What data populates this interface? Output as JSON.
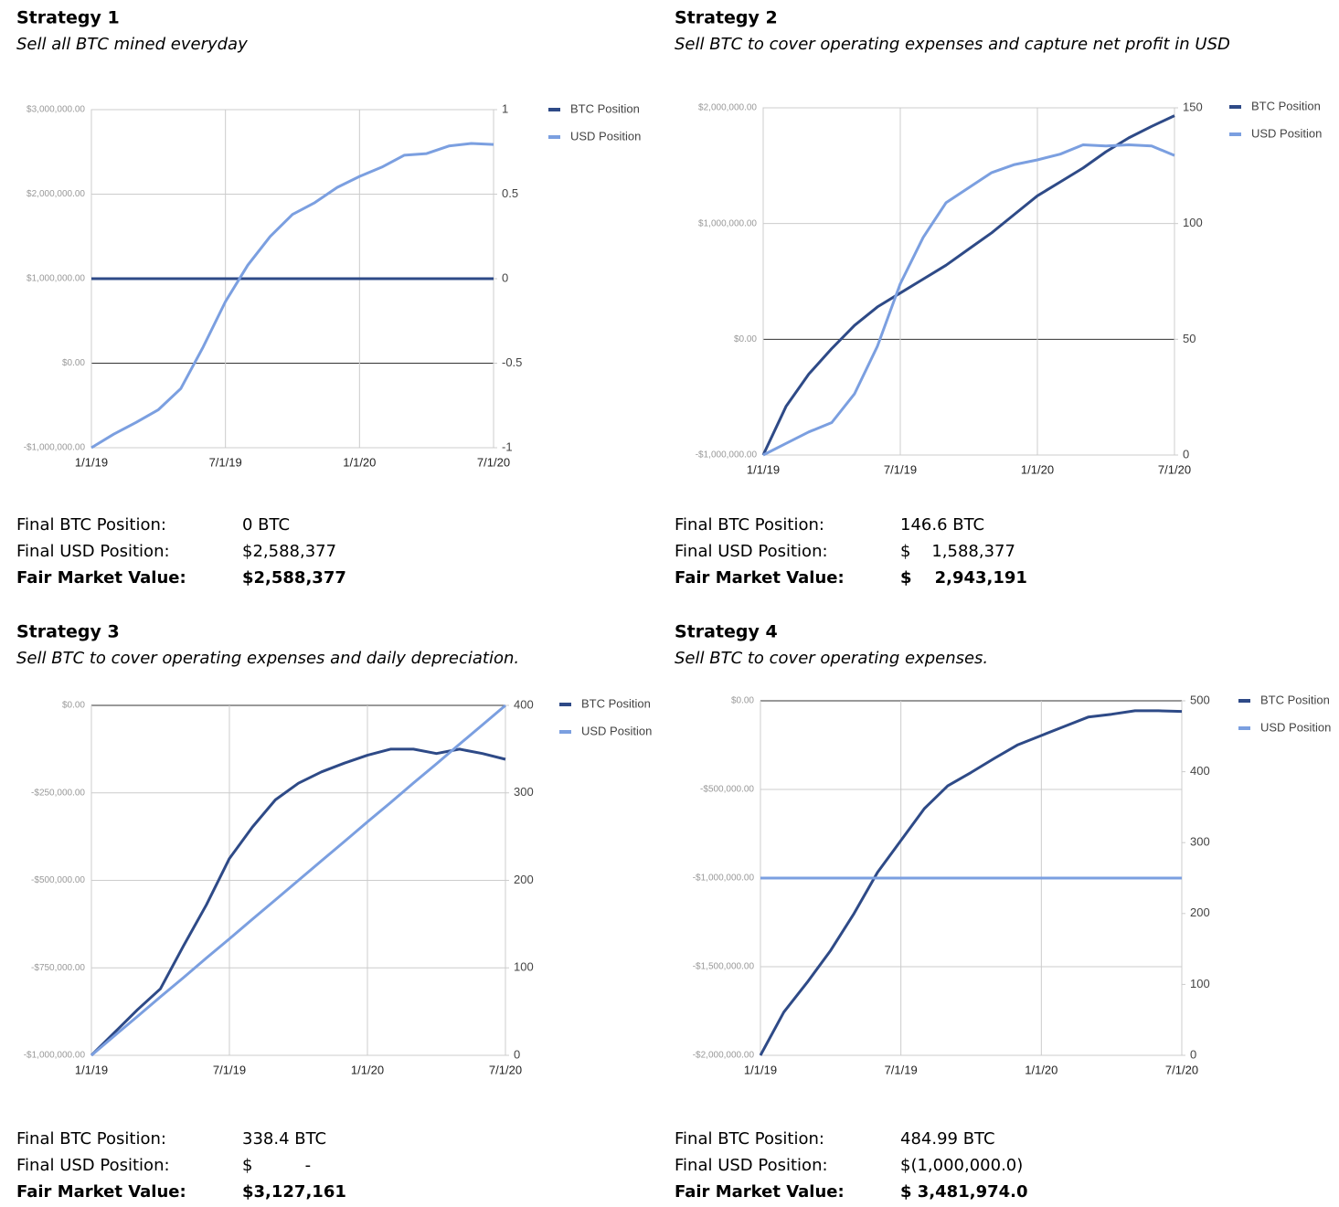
{
  "chart_data": [
    {
      "type": "line",
      "title": "Strategy 1",
      "subtitle": "Sell all BTC mined everyday",
      "x": [
        "1/1/19",
        "2/1/19",
        "3/1/19",
        "4/1/19",
        "5/1/19",
        "6/1/19",
        "7/1/19",
        "8/1/19",
        "9/1/19",
        "10/1/19",
        "11/1/19",
        "12/1/19",
        "1/1/20",
        "2/1/20",
        "3/1/20",
        "4/1/20",
        "5/1/20",
        "6/1/20",
        "7/1/20"
      ],
      "xticks": [
        "1/1/19",
        "7/1/19",
        "1/1/20",
        "7/1/20"
      ],
      "ylim": [
        -1000000,
        3000000
      ],
      "yticks": [
        {
          "value": -1000000,
          "label": "-$1,000,000.00"
        },
        {
          "value": 0,
          "label": "$0.00"
        },
        {
          "value": 1000000,
          "label": "$1,000,000.00"
        },
        {
          "value": 2000000,
          "label": "$2,000,000.00"
        },
        {
          "value": 3000000,
          "label": "$3,000,000.00"
        }
      ],
      "y2lim": [
        -1,
        1
      ],
      "y2ticks": [
        -1,
        -0.5,
        0,
        0.5,
        1
      ],
      "grid": true,
      "legend": "right",
      "series": [
        {
          "name": "BTC Position",
          "color": "#2e4a87",
          "axis": "y2",
          "values": [
            0,
            0,
            0,
            0,
            0,
            0,
            0,
            0,
            0,
            0,
            0,
            0,
            0,
            0,
            0,
            0,
            0,
            0,
            0
          ]
        },
        {
          "name": "USD Position",
          "color": "#7b9fe0",
          "axis": "y",
          "values": [
            -1000000,
            -840000,
            -700000,
            -550000,
            -300000,
            190000,
            730000,
            1160000,
            1500000,
            1760000,
            1900000,
            2080000,
            2210000,
            2320000,
            2460000,
            2480000,
            2570000,
            2600000,
            2588377
          ]
        }
      ]
    },
    {
      "type": "line",
      "title": "Strategy 2",
      "subtitle": "Sell BTC to cover operating expenses and capture net profit in USD",
      "x": [
        "1/1/19",
        "2/1/19",
        "3/1/19",
        "4/1/19",
        "5/1/19",
        "6/1/19",
        "7/1/19",
        "8/1/19",
        "9/1/19",
        "10/1/19",
        "11/1/19",
        "12/1/19",
        "1/1/20",
        "2/1/20",
        "3/1/20",
        "4/1/20",
        "5/1/20",
        "6/1/20",
        "7/1/20"
      ],
      "xticks": [
        "1/1/19",
        "7/1/19",
        "1/1/20",
        "7/1/20"
      ],
      "ylim": [
        -1000000,
        2000000
      ],
      "yticks": [
        {
          "value": -1000000,
          "label": "-$1,000,000.00"
        },
        {
          "value": 0,
          "label": "$0.00"
        },
        {
          "value": 1000000,
          "label": "$1,000,000.00"
        },
        {
          "value": 2000000,
          "label": "$2,000,000.00"
        }
      ],
      "y2lim": [
        0,
        150
      ],
      "y2ticks": [
        0,
        50,
        100,
        150
      ],
      "grid": true,
      "legend": "right",
      "series": [
        {
          "name": "BTC Position",
          "color": "#2e4a87",
          "axis": "y2",
          "values": [
            0,
            21,
            35,
            46,
            56,
            64,
            70,
            76,
            82,
            89,
            96,
            104,
            112,
            118,
            124,
            131,
            137,
            142,
            146.6
          ]
        },
        {
          "name": "USD Position",
          "color": "#7b9fe0",
          "axis": "y",
          "values": [
            -1000000,
            -900000,
            -800000,
            -720000,
            -470000,
            -60000,
            480000,
            880000,
            1180000,
            1310000,
            1440000,
            1510000,
            1550000,
            1600000,
            1680000,
            1670000,
            1680000,
            1670000,
            1588377
          ]
        }
      ]
    },
    {
      "type": "line",
      "title": "Strategy 3",
      "subtitle": "Sell BTC to cover operating expenses and daily depreciation.",
      "x": [
        "1/1/19",
        "2/1/19",
        "3/1/19",
        "4/1/19",
        "5/1/19",
        "6/1/19",
        "7/1/19",
        "8/1/19",
        "9/1/19",
        "10/1/19",
        "11/1/19",
        "12/1/19",
        "1/1/20",
        "2/1/20",
        "3/1/20",
        "4/1/20",
        "5/1/20",
        "6/1/20",
        "7/1/20"
      ],
      "xticks": [
        "1/1/19",
        "7/1/19",
        "1/1/20",
        "7/1/20"
      ],
      "ylim": [
        -1000000,
        0
      ],
      "yticks": [
        {
          "value": -1000000,
          "label": "-$1,000,000.00"
        },
        {
          "value": -750000,
          "label": "-$750,000.00"
        },
        {
          "value": -500000,
          "label": "-$500,000.00"
        },
        {
          "value": -250000,
          "label": "-$250,000.00"
        },
        {
          "value": 0,
          "label": "$0.00"
        }
      ],
      "y2lim": [
        0,
        400
      ],
      "y2ticks": [
        0,
        100,
        200,
        300,
        400
      ],
      "grid": true,
      "legend": "right",
      "series": [
        {
          "name": "BTC Position",
          "color": "#2e4a87",
          "axis": "y2",
          "values": [
            0,
            26,
            52,
            76,
            125,
            172,
            225,
            261,
            292,
            311,
            324,
            334,
            343,
            350,
            350,
            345,
            350,
            345,
            338.4
          ]
        },
        {
          "name": "USD Position",
          "color": "#7b9fe0",
          "axis": "y",
          "values": [
            -1000000,
            -944000,
            -889000,
            -833000,
            -778000,
            -722000,
            -667000,
            -611000,
            -556000,
            -500000,
            -444000,
            -389000,
            -333000,
            -278000,
            -222000,
            -167000,
            -111000,
            -56000,
            0
          ]
        }
      ]
    },
    {
      "type": "line",
      "title": "Strategy 4",
      "subtitle": "Sell BTC to cover operating expenses.",
      "x": [
        "1/1/19",
        "2/1/19",
        "3/1/19",
        "4/1/19",
        "5/1/19",
        "6/1/19",
        "7/1/19",
        "8/1/19",
        "9/1/19",
        "10/1/19",
        "11/1/19",
        "12/1/19",
        "1/1/20",
        "2/1/20",
        "3/1/20",
        "4/1/20",
        "5/1/20",
        "6/1/20",
        "7/1/20"
      ],
      "xticks": [
        "1/1/19",
        "7/1/19",
        "1/1/20",
        "7/1/20"
      ],
      "ylim": [
        -2000000,
        0
      ],
      "yticks": [
        {
          "value": -2000000,
          "label": "-$2,000,000.00"
        },
        {
          "value": -1500000,
          "label": "-$1,500,000.00"
        },
        {
          "value": -1000000,
          "label": "-$1,000,000.00"
        },
        {
          "value": -500000,
          "label": "-$500,000.00"
        },
        {
          "value": 0,
          "label": "$0.00"
        }
      ],
      "y2lim": [
        0,
        500
      ],
      "y2ticks": [
        0,
        100,
        200,
        300,
        400,
        500
      ],
      "grid": true,
      "legend": "right",
      "series": [
        {
          "name": "BTC Position",
          "color": "#2e4a87",
          "axis": "y2",
          "values": [
            0,
            61,
            103,
            148,
            200,
            258,
            303,
            348,
            380,
            399,
            419,
            438,
            451,
            464,
            477,
            481,
            486,
            486,
            484.99
          ]
        },
        {
          "name": "USD Position",
          "color": "#7b9fe0",
          "axis": "y",
          "values": [
            -1000000,
            -1000000,
            -1000000,
            -1000000,
            -1000000,
            -1000000,
            -1000000,
            -1000000,
            -1000000,
            -1000000,
            -1000000,
            -1000000,
            -1000000,
            -1000000,
            -1000000,
            -1000000,
            -1000000,
            -1000000,
            -1000000
          ]
        }
      ]
    }
  ],
  "summaries": [
    {
      "rows": [
        {
          "label": "Final BTC Position:",
          "value": "0 BTC"
        },
        {
          "label": "Final USD Position:",
          "value": "$2,588,377"
        },
        {
          "label": "Fair Market Value:",
          "value": "$2,588,377"
        }
      ]
    },
    {
      "rows": [
        {
          "label": "Final BTC Position:",
          "value": "146.6 BTC"
        },
        {
          "label": "Final USD Position:",
          "value": "$    1,588,377"
        },
        {
          "label": "Fair Market Value:",
          "value": "$    2,943,191"
        }
      ]
    },
    {
      "rows": [
        {
          "label": "Final BTC Position:",
          "value": "338.4 BTC"
        },
        {
          "label": "Final USD Position:",
          "value": "$          -"
        },
        {
          "label": "Fair Market Value:",
          "value": "$3,127,161"
        }
      ]
    },
    {
      "rows": [
        {
          "label": "Final BTC Position:",
          "value": "484.99 BTC"
        },
        {
          "label": "Final USD Position:",
          "value": "$(1,000,000.0)"
        },
        {
          "label": "Fair Market Value:",
          "value": "$ 3,481,974.0"
        }
      ]
    }
  ]
}
